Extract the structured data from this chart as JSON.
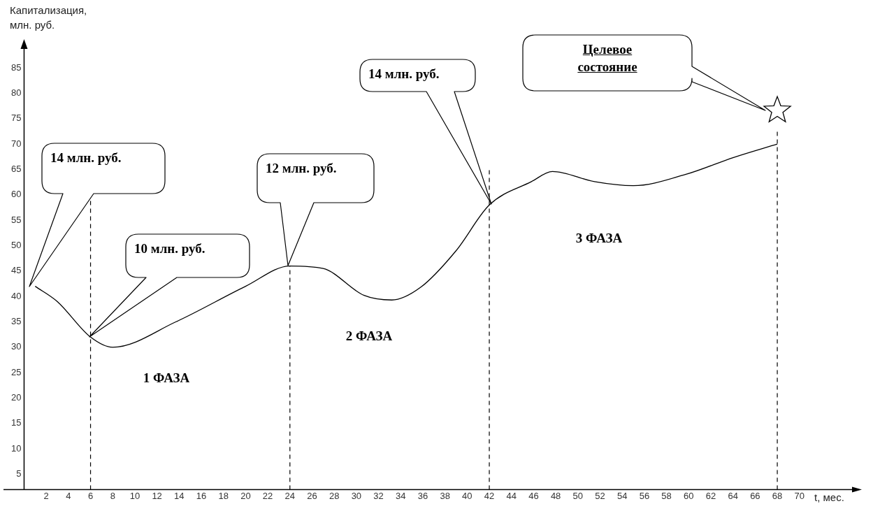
{
  "chart_data": {
    "type": "line",
    "xlabel": "t, мес.",
    "ylabel": "Капитализация, млн. руб.",
    "xlim": [
      0,
      75
    ],
    "ylim": [
      2,
      89
    ],
    "xticks": [
      2,
      4,
      6,
      8,
      10,
      12,
      14,
      16,
      18,
      20,
      22,
      24,
      26,
      28,
      30,
      32,
      34,
      36,
      38,
      40,
      42,
      44,
      46,
      48,
      50,
      52,
      54,
      56,
      58,
      60,
      62,
      64,
      66,
      68,
      70
    ],
    "yticks": [
      5,
      10,
      15,
      20,
      25,
      30,
      35,
      40,
      45,
      50,
      55,
      60,
      65,
      70,
      75,
      80,
      85
    ],
    "series": [
      {
        "color": "#000000",
        "marker": "none",
        "x": [
          1,
          3,
          6,
          8,
          13.7,
          20,
          24,
          27,
          30.7,
          33.2,
          35.8,
          39,
          42,
          45.8,
          47.7,
          51.5,
          55,
          59.7,
          64.1,
          68
        ],
        "values": [
          42,
          39,
          32,
          30,
          35,
          42,
          46,
          45.5,
          40.2,
          39.3,
          41.8,
          49,
          58,
          62.6,
          64.6,
          62.6,
          61.8,
          64,
          67.4,
          70
        ]
      },
      {
        "type": "scatter",
        "color": "#000000",
        "marker": "star",
        "x": [
          68
        ],
        "values": [
          76.6
        ]
      }
    ],
    "ref_lines": [
      {
        "axis": "x",
        "value": 6,
        "line_style": "dashed",
        "color": "#000000"
      },
      {
        "axis": "x",
        "value": 24,
        "line_style": "dashed",
        "color": "#000000"
      },
      {
        "axis": "x",
        "value": 42,
        "line_style": "dashed",
        "color": "#000000"
      },
      {
        "axis": "x",
        "value": 68,
        "line_style": "dashed",
        "color": "#000000"
      }
    ],
    "annotations": [
      "14 млн. руб.",
      "10 млн. руб.",
      "12 млн. руб.",
      "14 млн. руб.",
      "Целевое состояние",
      "1 ФАЗА",
      "2 ФАЗА",
      "3 ФАЗА"
    ]
  }
}
